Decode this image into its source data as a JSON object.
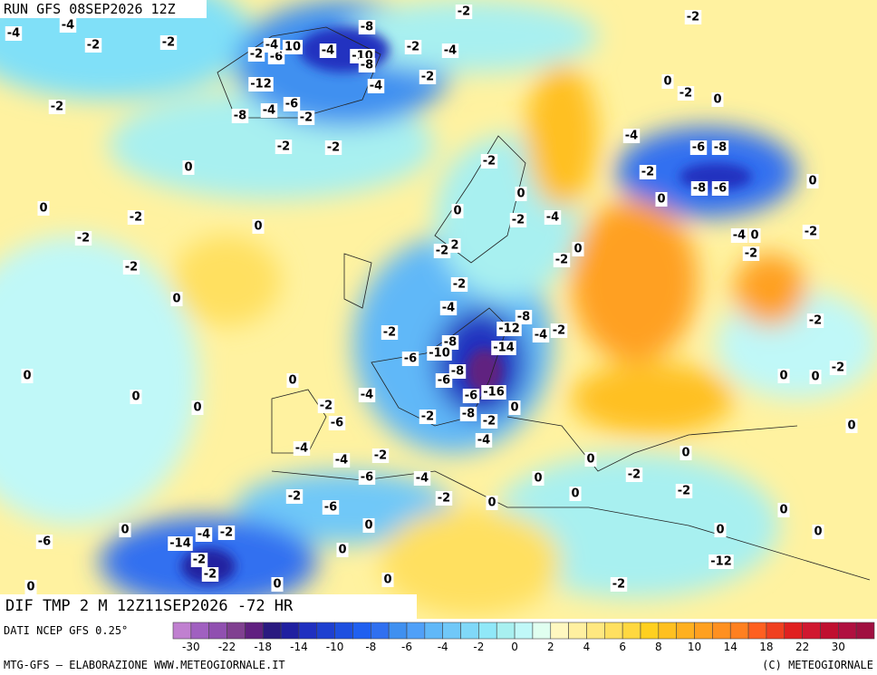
{
  "header": {
    "run": "RUN GFS 08SEP2026 12Z"
  },
  "footer": {
    "field": "DIF TMP 2 M 12Z11SEP2026 -72 HR",
    "source": "DATI NCEP GFS 0.25°",
    "credit_left": "MTG-GFS — ELABORAZIONE WWW.METEOGIORNALE.IT",
    "credit_right": "(C) METEOGIORNALE"
  },
  "legend": {
    "colors": [
      "#c080d0",
      "#a060c0",
      "#9050b0",
      "#804090",
      "#602080",
      "#2a1a80",
      "#2020a0",
      "#2030c0",
      "#1e40d0",
      "#1e50e0",
      "#2060f0",
      "#3070f0",
      "#4090f0",
      "#50a0f8",
      "#60b8f8",
      "#70c8f8",
      "#80d8f8",
      "#90e8f8",
      "#a8f0f0",
      "#c0f8f8",
      "#e0fff0",
      "#fff8c0",
      "#fff0a0",
      "#ffe880",
      "#ffe060",
      "#ffd840",
      "#ffd020",
      "#ffc020",
      "#ffb020",
      "#ffa020",
      "#ff9020",
      "#ff8020",
      "#ff6020",
      "#f04020",
      "#e02020",
      "#d01830",
      "#c01030",
      "#b01040",
      "#a01040"
    ],
    "labels": [
      "-30",
      "-22",
      "-18",
      "-14",
      "-10",
      "-8",
      "-6",
      "-4",
      "-2",
      "0",
      "2",
      "4",
      "6",
      "8",
      "10",
      "14",
      "18",
      "22",
      "30"
    ]
  },
  "map": {
    "labels": [
      "-4",
      "-4",
      "-2",
      "-2",
      "-2",
      "-8",
      "-2",
      "-2",
      "-2",
      "-4",
      "-2",
      "-6",
      "-4",
      "10",
      "-4",
      "-10",
      "-8",
      "-4",
      "-2",
      "-12",
      "-8",
      "-4",
      "-6",
      "-2",
      "-2",
      "-2",
      "0",
      "0",
      "-2",
      "-2",
      "-2",
      "0",
      "0",
      "0",
      "-2",
      "0",
      "-4",
      "-6",
      "-8",
      "-2",
      "0",
      "-2",
      "0",
      "-8",
      "-6",
      "0",
      "-2",
      "-4",
      "0",
      "-2",
      "2",
      "0",
      "-2",
      "-4",
      "0",
      "-2",
      "-2",
      "-2",
      "-4",
      "-8",
      "-12",
      "-4",
      "-2",
      "-2",
      "-8",
      "-10",
      "-14",
      "-6",
      "-8",
      "-6",
      "-2",
      "0",
      "0",
      "0",
      "0",
      "-2",
      "-4",
      "-6",
      "-16",
      "0",
      "-6",
      "-2",
      "-8",
      "-2",
      "-2",
      "0",
      "0",
      "0",
      "-4",
      "-4",
      "-2",
      "-4",
      "0",
      "0",
      "-6",
      "-4",
      "0",
      "-2",
      "-2",
      "0",
      "-2",
      "-2",
      "0",
      "-6",
      "0",
      "0",
      "0",
      "0",
      "0",
      "-6",
      "-4",
      "-2",
      "-14",
      "-2",
      "0",
      "-12",
      "-2",
      "0",
      "0",
      "0",
      "-2"
    ]
  }
}
